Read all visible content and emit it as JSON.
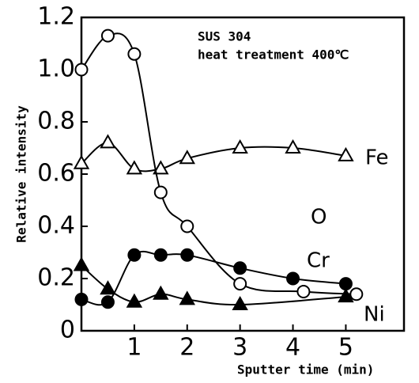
{
  "chart_data": {
    "type": "line",
    "annotations": [
      "SUS 304",
      "heat treatment 400℃"
    ],
    "xlabel": "Sputter time (min)",
    "ylabel": "Relative intensity",
    "xlim": [
      0,
      6.1
    ],
    "ylim": [
      0,
      1.2
    ],
    "xticks": [
      1,
      2,
      3,
      4,
      5
    ],
    "yticks": [
      0,
      {
        "value": 0.2,
        "label": "0.2"
      },
      {
        "value": 0.4,
        "label": "0.4"
      },
      {
        "value": 0.6,
        "label": "0.6"
      },
      {
        "value": 0.8,
        "label": "0.8"
      },
      {
        "value": 1.0,
        "label": "1.0"
      },
      {
        "value": 1.2,
        "label": "1.2"
      }
    ],
    "series": [
      {
        "name": "Fe",
        "marker": "open-triangle",
        "color": "#000000",
        "x": [
          0,
          0.5,
          1,
          1.5,
          2,
          3,
          4,
          5
        ],
        "values": [
          0.64,
          0.72,
          0.62,
          0.62,
          0.66,
          0.7,
          0.7,
          0.67
        ]
      },
      {
        "name": "O",
        "marker": "open-circle",
        "color": "#000000",
        "x": [
          0,
          0.5,
          1,
          1.5,
          2,
          3,
          4.2,
          5.2
        ],
        "values": [
          1.0,
          1.13,
          1.06,
          0.53,
          0.4,
          0.18,
          0.15,
          0.14
        ]
      },
      {
        "name": "Cr",
        "marker": "filled-circle",
        "color": "#000000",
        "x": [
          0,
          0.5,
          1,
          1.5,
          2,
          3,
          4,
          5
        ],
        "values": [
          0.12,
          0.11,
          0.29,
          0.29,
          0.29,
          0.24,
          0.2,
          0.18
        ]
      },
      {
        "name": "Ni",
        "marker": "filled-triangle",
        "color": "#000000",
        "x": [
          0,
          0.5,
          1,
          1.5,
          2,
          3,
          5
        ],
        "values": [
          0.25,
          0.16,
          0.11,
          0.14,
          0.12,
          0.1,
          0.13
        ]
      }
    ]
  }
}
